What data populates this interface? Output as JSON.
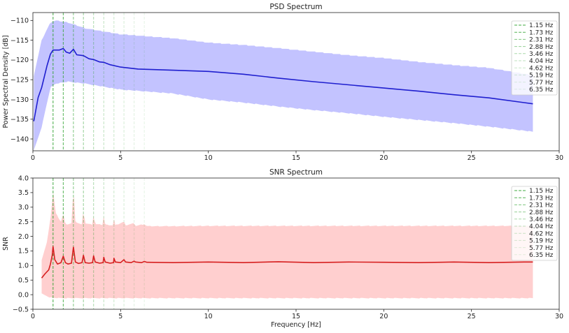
{
  "harmonics": {
    "labels": [
      "1.15 Hz",
      "1.73 Hz",
      "2.31 Hz",
      "2.88 Hz",
      "3.46 Hz",
      "4.04 Hz",
      "4.62 Hz",
      "5.19 Hz",
      "5.77 Hz",
      "6.35 Hz"
    ],
    "freqs": [
      1.15,
      1.73,
      2.31,
      2.88,
      3.46,
      4.04,
      4.62,
      5.19,
      5.77,
      6.35
    ],
    "color": "#2ca02c",
    "alphas": [
      0.9,
      0.8,
      0.6,
      0.5,
      0.4,
      0.3,
      0.25,
      0.2,
      0.15,
      0.12
    ]
  },
  "chart_data": [
    {
      "type": "line",
      "title": "PSD Spectrum",
      "xlabel": "",
      "ylabel": "Power Spectral Density [dB]",
      "xlim": [
        0,
        30
      ],
      "ylim": [
        -143,
        -108
      ],
      "xticks": [
        0,
        5,
        10,
        15,
        20,
        25,
        30
      ],
      "yticks": [
        -140,
        -135,
        -130,
        -125,
        -120,
        -115,
        -110
      ],
      "ytick_labels": [
        "−140",
        "−135",
        "−130",
        "−125",
        "−120",
        "−115",
        "−110"
      ],
      "grid": false,
      "legend": "top-right",
      "line_color": "#1f1fcf",
      "band_color": "#aaaaff",
      "series": [
        {
          "x": [
            0.05,
            0.3,
            0.5,
            0.8,
            1.0,
            1.15,
            1.3,
            1.5,
            1.73,
            1.9,
            2.1,
            2.31,
            2.5,
            2.88,
            3.2,
            3.46,
            3.8,
            4.04,
            4.4,
            5,
            6,
            8,
            10,
            12,
            14,
            16,
            18,
            20,
            22,
            24,
            26,
            28,
            28.5
          ],
          "y": [
            -135.5,
            -129.5,
            -127,
            -121.5,
            -118.5,
            -117.5,
            -117.5,
            -117.5,
            -117.1,
            -118,
            -118.3,
            -117.3,
            -118.7,
            -118.9,
            -119.7,
            -119.9,
            -120.5,
            -120.6,
            -121.2,
            -121.8,
            -122.3,
            -122.6,
            -122.9,
            -123.6,
            -124.6,
            -125.5,
            -126.3,
            -127.1,
            -127.9,
            -128.8,
            -129.6,
            -130.8,
            -131.1
          ]
        },
        {
          "name": "upper",
          "x": [
            0.05,
            0.5,
            1.0,
            1.3,
            2.0,
            3.0,
            5,
            8,
            10,
            12,
            14,
            16,
            18,
            20,
            22,
            24,
            26,
            28,
            28.5
          ],
          "y": [
            -124,
            -115,
            -110.5,
            -110,
            -110.5,
            -112,
            -113.5,
            -114.5,
            -115.6,
            -116.2,
            -117,
            -117.9,
            -118.8,
            -119.5,
            -120.5,
            -121.3,
            -122,
            -123.5,
            -123.8
          ]
        },
        {
          "name": "lower",
          "x": [
            0.05,
            0.5,
            1.0,
            1.3,
            2.0,
            3.0,
            5,
            8,
            10,
            12,
            14,
            16,
            18,
            20,
            22,
            24,
            26,
            28,
            28.5
          ],
          "y": [
            -143,
            -137,
            -127,
            -126,
            -125.5,
            -126,
            -127.5,
            -128.5,
            -130,
            -130.8,
            -131.8,
            -132.7,
            -133.5,
            -134.4,
            -135.2,
            -136,
            -136.9,
            -137.9,
            -138.2
          ]
        }
      ]
    },
    {
      "type": "line",
      "title": "SNR Spectrum",
      "xlabel": "Frequency [Hz]",
      "ylabel": "SNR",
      "xlim": [
        0,
        30
      ],
      "ylim": [
        -0.5,
        4.0
      ],
      "xticks": [
        0,
        5,
        10,
        15,
        20,
        25,
        30
      ],
      "yticks": [
        -0.5,
        0.0,
        0.5,
        1.0,
        1.5,
        2.0,
        2.5,
        3.0,
        3.5,
        4.0
      ],
      "ytick_labels": [
        "−0.5",
        "0.0",
        "0.5",
        "1.0",
        "1.5",
        "2.0",
        "2.5",
        "3.0",
        "3.5",
        "4.0"
      ],
      "grid": false,
      "legend": "top-right",
      "line_color": "#d62020",
      "band_color": "#ffbaba",
      "series": [
        {
          "x": [
            0.5,
            0.7,
            0.9,
            1.0,
            1.1,
            1.15,
            1.25,
            1.4,
            1.6,
            1.73,
            1.85,
            2.0,
            2.2,
            2.31,
            2.42,
            2.6,
            2.8,
            2.88,
            2.98,
            3.2,
            3.4,
            3.46,
            3.55,
            3.8,
            4.0,
            4.04,
            4.12,
            4.4,
            4.6,
            4.62,
            4.7,
            5.0,
            5.19,
            5.28,
            5.6,
            5.77,
            5.85,
            6.2,
            6.35,
            6.5,
            8,
            10,
            12,
            14,
            16,
            18,
            20,
            22,
            24,
            26,
            28,
            28.5
          ],
          "y": [
            0.57,
            0.72,
            0.85,
            1.05,
            1.35,
            1.65,
            1.2,
            1.05,
            1.1,
            1.32,
            1.1,
            1.05,
            1.08,
            1.63,
            1.12,
            1.07,
            1.1,
            1.35,
            1.1,
            1.08,
            1.1,
            1.33,
            1.12,
            1.08,
            1.1,
            1.28,
            1.12,
            1.08,
            1.1,
            1.25,
            1.12,
            1.1,
            1.2,
            1.12,
            1.1,
            1.15,
            1.12,
            1.1,
            1.14,
            1.11,
            1.1,
            1.12,
            1.1,
            1.13,
            1.1,
            1.12,
            1.11,
            1.1,
            1.12,
            1.1,
            1.12,
            1.12
          ]
        },
        {
          "name": "upper",
          "x": [
            0.5,
            0.8,
            1.0,
            1.15,
            1.3,
            1.6,
            1.73,
            1.85,
            2.2,
            2.31,
            2.42,
            2.8,
            2.88,
            2.98,
            3.4,
            3.46,
            3.55,
            4.0,
            4.04,
            4.12,
            4.6,
            4.62,
            4.7,
            5.19,
            5.3,
            5.77,
            5.85,
            6.35,
            6.5,
            8,
            10,
            15,
            20,
            25,
            28.5
          ],
          "y": [
            1.2,
            1.8,
            2.6,
            3.55,
            2.8,
            2.5,
            2.8,
            2.4,
            2.45,
            3.7,
            2.5,
            2.4,
            2.9,
            2.45,
            2.4,
            2.75,
            2.42,
            2.4,
            2.7,
            2.4,
            2.38,
            2.6,
            2.38,
            2.5,
            2.38,
            2.45,
            2.36,
            2.42,
            2.35,
            2.35,
            2.36,
            2.36,
            2.36,
            2.36,
            2.36
          ]
        },
        {
          "name": "lower",
          "x": [
            0.5,
            0.8,
            1.0,
            1.5,
            2.0,
            5,
            10,
            15,
            20,
            25,
            28.5
          ],
          "y": [
            0.03,
            -0.05,
            -0.1,
            -0.12,
            -0.12,
            -0.12,
            -0.12,
            -0.12,
            -0.12,
            -0.12,
            -0.12
          ]
        }
      ]
    }
  ]
}
